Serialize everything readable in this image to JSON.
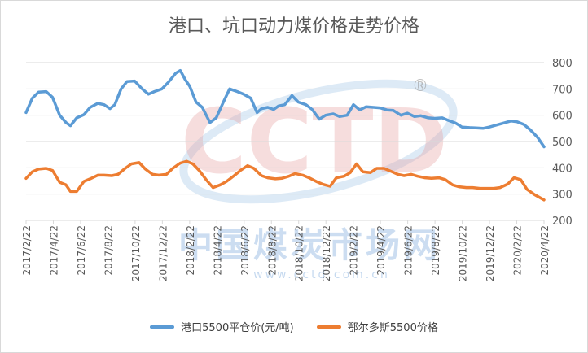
{
  "title": "港口、坑口动力煤价格走势价格",
  "watermark": {
    "logo": "CCTD",
    "registered": "®",
    "name_cn": "中国煤炭市场网",
    "url": "www.cctd.com.cn"
  },
  "colors": {
    "port": "#5b9bd5",
    "pit": "#ed7d31",
    "grid": "#d9d9d9",
    "text": "#595959"
  },
  "chart_data": {
    "type": "line",
    "title": "港口、坑口动力煤价格走势价格",
    "y_axis_side": "right",
    "ylim": [
      200,
      800
    ],
    "yticks": [
      200,
      300,
      400,
      500,
      600,
      700,
      800
    ],
    "xlim": [
      "2017/2/22",
      "2020/4/22"
    ],
    "xtick_labels": [
      "2017/2/22",
      "2017/4/22",
      "2017/6/22",
      "2017/8/22",
      "2017/10/22",
      "2017/12/22",
      "2018/2/22",
      "2018/4/22",
      "2018/6/22",
      "2018/8/22",
      "2018/10/22",
      "2018/12/22",
      "2019/2/22",
      "2019/4/22",
      "2019/6/22",
      "2019/8/22",
      "2019/10/22",
      "2019/12/22",
      "2020/2/22",
      "2020/4/22"
    ],
    "grid": true,
    "legend_position": "bottom",
    "series": [
      {
        "name": "港口5500平仓价(元/吨)",
        "color": "#5b9bd5",
        "points": [
          [
            "2017/2/22",
            610
          ],
          [
            "2017/3/8",
            665
          ],
          [
            "2017/3/22",
            688
          ],
          [
            "2017/4/8",
            690
          ],
          [
            "2017/4/22",
            668
          ],
          [
            "2017/5/8",
            600
          ],
          [
            "2017/5/22",
            572
          ],
          [
            "2017/6/1",
            560
          ],
          [
            "2017/6/15",
            590
          ],
          [
            "2017/7/1",
            602
          ],
          [
            "2017/7/15",
            630
          ],
          [
            "2017/8/1",
            645
          ],
          [
            "2017/8/15",
            640
          ],
          [
            "2017/8/28",
            625
          ],
          [
            "2017/9/8",
            640
          ],
          [
            "2017/9/22",
            700
          ],
          [
            "2017/10/5",
            728
          ],
          [
            "2017/10/22",
            730
          ],
          [
            "2017/11/8",
            700
          ],
          [
            "2017/11/22",
            680
          ],
          [
            "2017/12/5",
            690
          ],
          [
            "2017/12/22",
            700
          ],
          [
            "2018/1/5",
            725
          ],
          [
            "2018/1/22",
            760
          ],
          [
            "2018/2/1",
            770
          ],
          [
            "2018/2/12",
            735
          ],
          [
            "2018/2/22",
            710
          ],
          [
            "2018/3/8",
            650
          ],
          [
            "2018/3/22",
            630
          ],
          [
            "2018/4/8",
            572
          ],
          [
            "2018/4/22",
            590
          ],
          [
            "2018/5/8",
            650
          ],
          [
            "2018/5/22",
            700
          ],
          [
            "2018/6/8",
            690
          ],
          [
            "2018/6/22",
            680
          ],
          [
            "2018/7/8",
            665
          ],
          [
            "2018/7/22",
            610
          ],
          [
            "2018/8/1",
            625
          ],
          [
            "2018/8/15",
            630
          ],
          [
            "2018/8/28",
            622
          ],
          [
            "2018/9/8",
            635
          ],
          [
            "2018/9/22",
            640
          ],
          [
            "2018/10/8",
            675
          ],
          [
            "2018/10/22",
            650
          ],
          [
            "2018/11/8",
            640
          ],
          [
            "2018/11/22",
            622
          ],
          [
            "2018/12/8",
            585
          ],
          [
            "2018/12/22",
            600
          ],
          [
            "2019/1/8",
            605
          ],
          [
            "2019/1/22",
            595
          ],
          [
            "2019/2/8",
            600
          ],
          [
            "2019/2/22",
            640
          ],
          [
            "2019/3/8",
            620
          ],
          [
            "2019/3/22",
            632
          ],
          [
            "2019/4/8",
            630
          ],
          [
            "2019/4/22",
            628
          ],
          [
            "2019/5/8",
            620
          ],
          [
            "2019/5/22",
            618
          ],
          [
            "2019/6/8",
            600
          ],
          [
            "2019/6/22",
            608
          ],
          [
            "2019/7/8",
            595
          ],
          [
            "2019/7/22",
            598
          ],
          [
            "2019/8/8",
            590
          ],
          [
            "2019/8/22",
            588
          ],
          [
            "2019/9/8",
            590
          ],
          [
            "2019/9/22",
            580
          ],
          [
            "2019/10/8",
            570
          ],
          [
            "2019/10/22",
            555
          ],
          [
            "2019/11/8",
            553
          ],
          [
            "2019/11/22",
            552
          ],
          [
            "2019/12/8",
            550
          ],
          [
            "2019/12/22",
            555
          ],
          [
            "2020/1/8",
            563
          ],
          [
            "2020/1/22",
            570
          ],
          [
            "2020/2/8",
            578
          ],
          [
            "2020/2/22",
            575
          ],
          [
            "2020/3/8",
            565
          ],
          [
            "2020/3/22",
            545
          ],
          [
            "2020/4/8",
            515
          ],
          [
            "2020/4/22",
            480
          ]
        ]
      },
      {
        "name": "鄂尔多斯5500价格",
        "color": "#ed7d31",
        "points": [
          [
            "2017/2/22",
            360
          ],
          [
            "2017/3/8",
            385
          ],
          [
            "2017/3/22",
            395
          ],
          [
            "2017/4/8",
            398
          ],
          [
            "2017/4/22",
            390
          ],
          [
            "2017/5/8",
            345
          ],
          [
            "2017/5/22",
            335
          ],
          [
            "2017/6/1",
            310
          ],
          [
            "2017/6/15",
            310
          ],
          [
            "2017/7/1",
            348
          ],
          [
            "2017/7/15",
            358
          ],
          [
            "2017/8/1",
            372
          ],
          [
            "2017/8/15",
            372
          ],
          [
            "2017/9/1",
            370
          ],
          [
            "2017/9/15",
            375
          ],
          [
            "2017/10/1",
            398
          ],
          [
            "2017/10/15",
            415
          ],
          [
            "2017/11/1",
            420
          ],
          [
            "2017/11/15",
            395
          ],
          [
            "2017/12/1",
            375
          ],
          [
            "2017/12/15",
            372
          ],
          [
            "2018/1/1",
            375
          ],
          [
            "2018/1/15",
            398
          ],
          [
            "2018/2/1",
            418
          ],
          [
            "2018/2/15",
            425
          ],
          [
            "2018/3/1",
            415
          ],
          [
            "2018/3/15",
            390
          ],
          [
            "2018/4/1",
            352
          ],
          [
            "2018/4/15",
            325
          ],
          [
            "2018/5/1",
            335
          ],
          [
            "2018/5/15",
            348
          ],
          [
            "2018/6/1",
            370
          ],
          [
            "2018/6/15",
            390
          ],
          [
            "2018/7/1",
            408
          ],
          [
            "2018/7/15",
            398
          ],
          [
            "2018/8/1",
            370
          ],
          [
            "2018/8/15",
            362
          ],
          [
            "2018/9/1",
            358
          ],
          [
            "2018/9/15",
            360
          ],
          [
            "2018/10/1",
            368
          ],
          [
            "2018/10/15",
            378
          ],
          [
            "2018/11/1",
            372
          ],
          [
            "2018/11/15",
            362
          ],
          [
            "2018/12/1",
            348
          ],
          [
            "2018/12/15",
            338
          ],
          [
            "2019/1/1",
            330
          ],
          [
            "2019/1/15",
            362
          ],
          [
            "2019/2/1",
            368
          ],
          [
            "2019/2/15",
            382
          ],
          [
            "2019/3/1",
            415
          ],
          [
            "2019/3/15",
            385
          ],
          [
            "2019/4/1",
            382
          ],
          [
            "2019/4/15",
            398
          ],
          [
            "2019/5/1",
            398
          ],
          [
            "2019/5/15",
            388
          ],
          [
            "2019/6/1",
            375
          ],
          [
            "2019/6/15",
            370
          ],
          [
            "2019/7/1",
            375
          ],
          [
            "2019/7/15",
            368
          ],
          [
            "2019/8/1",
            362
          ],
          [
            "2019/8/15",
            360
          ],
          [
            "2019/9/1",
            362
          ],
          [
            "2019/9/15",
            355
          ],
          [
            "2019/10/1",
            335
          ],
          [
            "2019/10/15",
            328
          ],
          [
            "2019/11/1",
            325
          ],
          [
            "2019/11/15",
            325
          ],
          [
            "2019/12/1",
            322
          ],
          [
            "2019/12/15",
            322
          ],
          [
            "2020/1/1",
            322
          ],
          [
            "2020/1/15",
            325
          ],
          [
            "2020/2/1",
            338
          ],
          [
            "2020/2/15",
            362
          ],
          [
            "2020/3/1",
            355
          ],
          [
            "2020/3/15",
            318
          ],
          [
            "2020/4/1",
            298
          ],
          [
            "2020/4/22",
            278
          ]
        ]
      }
    ]
  }
}
